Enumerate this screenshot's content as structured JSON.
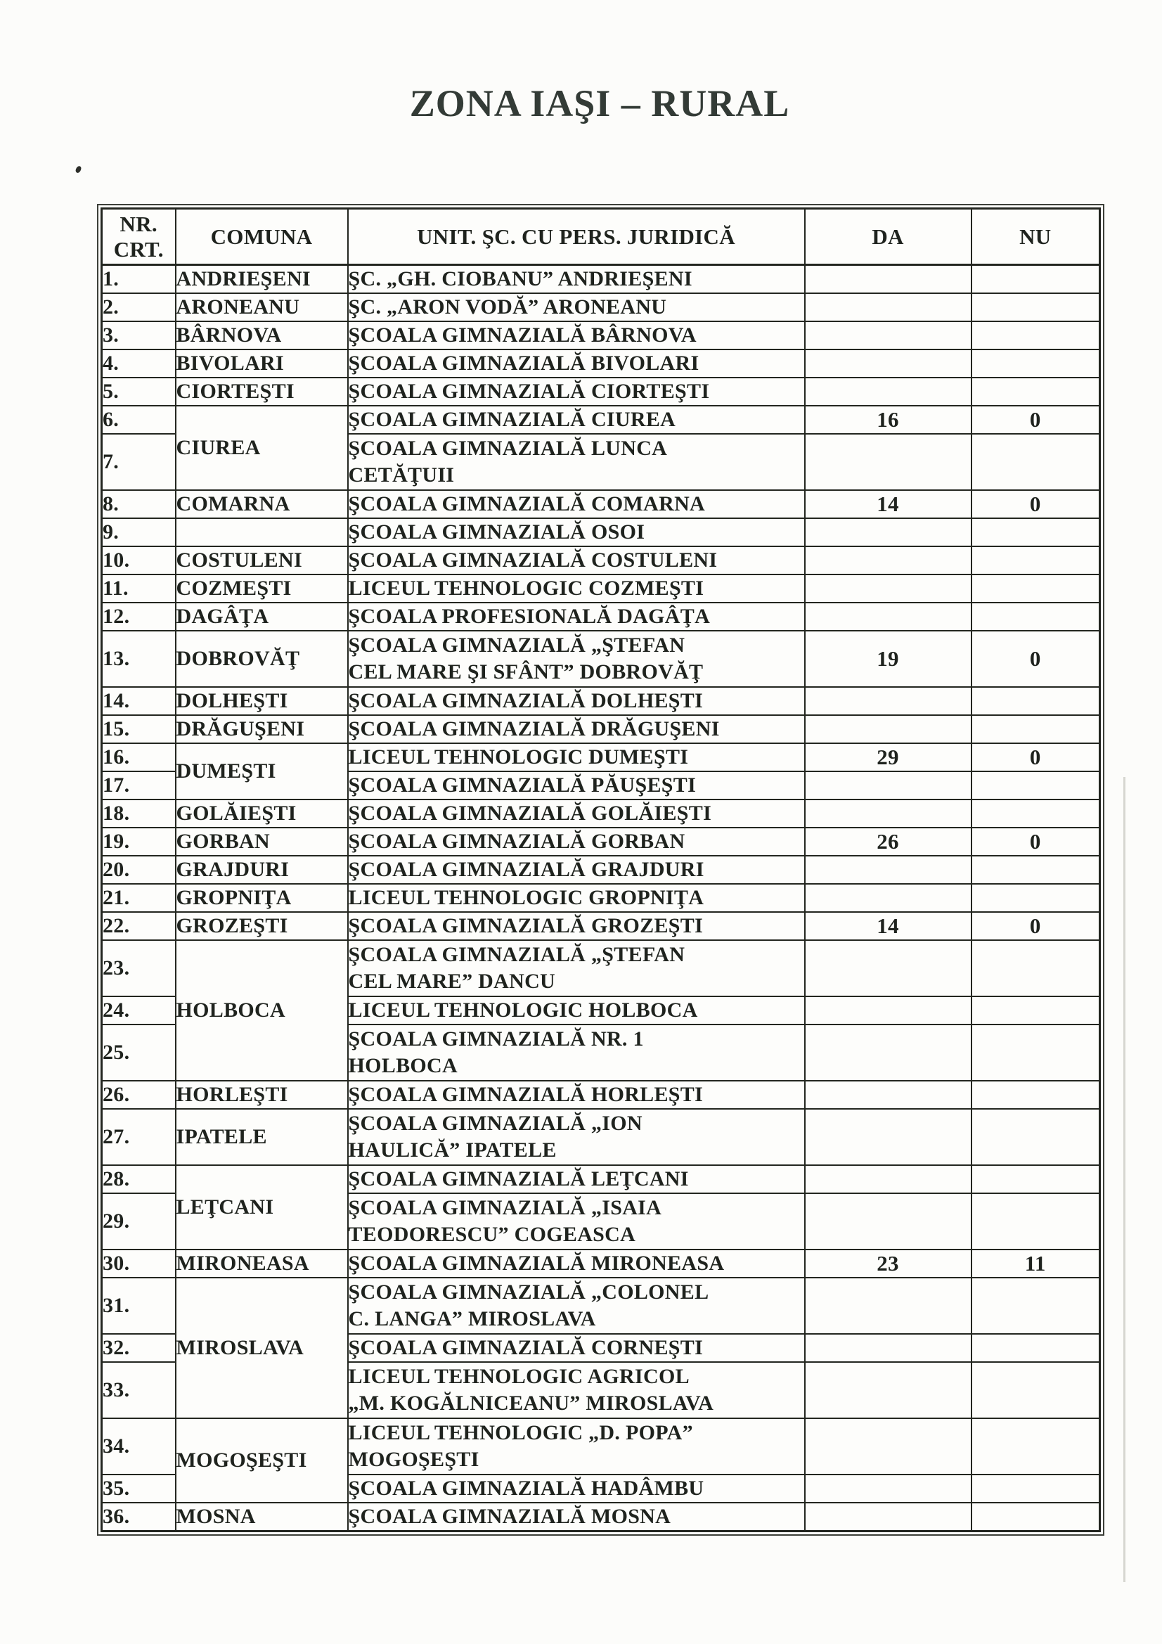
{
  "title": "ZONA IAŞI – RURAL",
  "table": {
    "headers": {
      "nr": "NR. CRT.",
      "comuna": "COMUNA",
      "unit": "UNIT. ŞC. CU PERS. JURIDICĂ",
      "da": "DA",
      "nu": "NU"
    },
    "rows": [
      {
        "nr": "1.",
        "comuna": "ANDRIEŞENI",
        "comuna_rowspan": 1,
        "unit": "ŞC. „GH. CIOBANU” ANDRIEŞENI",
        "da": "",
        "nu": "",
        "tall": false
      },
      {
        "nr": "2.",
        "comuna": "ARONEANU",
        "comuna_rowspan": 1,
        "unit": "ŞC. „ARON VODĂ” ARONEANU",
        "da": "",
        "nu": "",
        "tall": false
      },
      {
        "nr": "3.",
        "comuna": "BÂRNOVA",
        "comuna_rowspan": 1,
        "unit": "ŞCOALA GIMNAZIALĂ BÂRNOVA",
        "da": "",
        "nu": "",
        "tall": false
      },
      {
        "nr": "4.",
        "comuna": "BIVOLARI",
        "comuna_rowspan": 1,
        "unit": "ŞCOALA GIMNAZIALĂ BIVOLARI",
        "da": "",
        "nu": "",
        "tall": false
      },
      {
        "nr": "5.",
        "comuna": "CIORTEŞTI",
        "comuna_rowspan": 1,
        "unit": "ŞCOALA GIMNAZIALĂ CIORTEŞTI",
        "da": "",
        "nu": "",
        "tall": false
      },
      {
        "nr": "6.",
        "comuna": "CIUREA",
        "comuna_rowspan": 2,
        "unit": "ŞCOALA GIMNAZIALĂ CIUREA",
        "da": "16",
        "nu": "0",
        "tall": false
      },
      {
        "nr": "7.",
        "comuna": null,
        "comuna_rowspan": 0,
        "unit": "ŞCOALA GIMNAZIALĂ LUNCA\nCETĂŢUII",
        "da": "",
        "nu": "",
        "tall": true
      },
      {
        "nr": "8.",
        "comuna": "COMARNA",
        "comuna_rowspan": 1,
        "unit": "ŞCOALA GIMNAZIALĂ COMARNA",
        "da": "14",
        "nu": "0",
        "tall": false
      },
      {
        "nr": "9.",
        "comuna": "",
        "comuna_rowspan": 1,
        "unit": "ŞCOALA GIMNAZIALĂ OSOI",
        "da": "",
        "nu": "",
        "tall": false
      },
      {
        "nr": "10.",
        "comuna": "COSTULENI",
        "comuna_rowspan": 1,
        "unit": "ŞCOALA GIMNAZIALĂ COSTULENI",
        "da": "",
        "nu": "",
        "tall": false
      },
      {
        "nr": "11.",
        "comuna": "COZMEŞTI",
        "comuna_rowspan": 1,
        "unit": "LICEUL TEHNOLOGIC COZMEŞTI",
        "da": "",
        "nu": "",
        "tall": false
      },
      {
        "nr": "12.",
        "comuna": "DAGÂŢA",
        "comuna_rowspan": 1,
        "unit": "ŞCOALA PROFESIONALĂ DAGÂŢA",
        "da": "",
        "nu": "",
        "tall": false
      },
      {
        "nr": "13.",
        "comuna": "DOBROVĂŢ",
        "comuna_rowspan": 1,
        "unit": "ŞCOALA GIMNAZIALĂ „ŞTEFAN\nCEL MARE ŞI SFÂNT” DOBROVĂŢ",
        "da": "19",
        "nu": "0",
        "tall": true,
        "nu_low": true
      },
      {
        "nr": "14.",
        "comuna": "DOLHEŞTI",
        "comuna_rowspan": 1,
        "unit": "ŞCOALA GIMNAZIALĂ DOLHEŞTI",
        "da": "",
        "nu": "",
        "tall": false
      },
      {
        "nr": "15.",
        "comuna": "DRĂGUŞENI",
        "comuna_rowspan": 1,
        "unit": "ŞCOALA GIMNAZIALĂ DRĂGUŞENI",
        "da": "",
        "nu": "",
        "tall": false
      },
      {
        "nr": "16.",
        "comuna": "DUMEŞTI",
        "comuna_rowspan": 2,
        "unit": "LICEUL TEHNOLOGIC DUMEŞTI",
        "da": "29",
        "nu": "0",
        "tall": false
      },
      {
        "nr": "17.",
        "comuna": null,
        "comuna_rowspan": 0,
        "unit": "ŞCOALA GIMNAZIALĂ PĂUŞEŞTI",
        "da": "",
        "nu": "",
        "tall": false
      },
      {
        "nr": "18.",
        "comuna": "GOLĂIEŞTI",
        "comuna_rowspan": 1,
        "unit": "ŞCOALA GIMNAZIALĂ GOLĂIEŞTI",
        "da": "",
        "nu": "",
        "tall": false
      },
      {
        "nr": "19.",
        "comuna": "GORBAN",
        "comuna_rowspan": 1,
        "unit": "ŞCOALA GIMNAZIALĂ GORBAN",
        "da": "26",
        "nu": "0",
        "tall": false
      },
      {
        "nr": "20.",
        "comuna": "GRAJDURI",
        "comuna_rowspan": 1,
        "unit": "ŞCOALA GIMNAZIALĂ GRAJDURI",
        "da": "",
        "nu": "",
        "tall": false
      },
      {
        "nr": "21.",
        "comuna": "GROPNIŢA",
        "comuna_rowspan": 1,
        "unit": "LICEUL TEHNOLOGIC GROPNIŢA",
        "da": "",
        "nu": "",
        "tall": false
      },
      {
        "nr": "22.",
        "comuna": "GROZEŞTI",
        "comuna_rowspan": 1,
        "unit": "ŞCOALA GIMNAZIALĂ GROZEŞTI",
        "da": "14",
        "nu": "0",
        "tall": false
      },
      {
        "nr": "23.",
        "comuna": "HOLBOCA",
        "comuna_rowspan": 3,
        "unit": "ŞCOALA GIMNAZIALĂ „ŞTEFAN\nCEL MARE” DANCU",
        "da": "",
        "nu": "",
        "tall": true
      },
      {
        "nr": "24.",
        "comuna": null,
        "comuna_rowspan": 0,
        "unit": "LICEUL TEHNOLOGIC HOLBOCA",
        "da": "",
        "nu": "",
        "tall": false
      },
      {
        "nr": "25.",
        "comuna": null,
        "comuna_rowspan": 0,
        "unit": "ŞCOALA GIMNAZIALĂ NR. 1\nHOLBOCA",
        "da": "",
        "nu": "",
        "tall": true
      },
      {
        "nr": "26.",
        "comuna": "HORLEŞTI",
        "comuna_rowspan": 1,
        "unit": "ŞCOALA GIMNAZIALĂ HORLEŞTI",
        "da": "",
        "nu": "",
        "tall": false
      },
      {
        "nr": "27.",
        "comuna": "IPATELE",
        "comuna_rowspan": 1,
        "unit": "ŞCOALA GIMNAZIALĂ „ION\nHAULICĂ” IPATELE",
        "da": "",
        "nu": "",
        "tall": true
      },
      {
        "nr": "28.",
        "comuna": "LEŢCANI",
        "comuna_rowspan": 2,
        "unit": "ŞCOALA GIMNAZIALĂ LEŢCANI",
        "da": "",
        "nu": "",
        "tall": false
      },
      {
        "nr": "29.",
        "comuna": null,
        "comuna_rowspan": 0,
        "unit": "ŞCOALA GIMNAZIALĂ „ISAIA\nTEODORESCU” COGEASCA",
        "da": "",
        "nu": "",
        "tall": true
      },
      {
        "nr": "30.",
        "comuna": "MIRONEASA",
        "comuna_rowspan": 1,
        "unit": "ŞCOALA GIMNAZIALĂ MIRONEASA",
        "da": "23",
        "nu": "11",
        "tall": false
      },
      {
        "nr": "31.",
        "comuna": "MIROSLAVA",
        "comuna_rowspan": 3,
        "unit": "ŞCOALA GIMNAZIALĂ „COLONEL\nC. LANGA” MIROSLAVA",
        "da": "",
        "nu": "",
        "tall": true
      },
      {
        "nr": "32.",
        "comuna": null,
        "comuna_rowspan": 0,
        "unit": "ŞCOALA GIMNAZIALĂ CORNEŞTI",
        "da": "",
        "nu": "",
        "tall": false
      },
      {
        "nr": "33.",
        "comuna": null,
        "comuna_rowspan": 0,
        "unit": "LICEUL TEHNOLOGIC AGRICOL\n„M. KOGĂLNICEANU” MIROSLAVA",
        "da": "",
        "nu": "",
        "tall": true
      },
      {
        "nr": "34.",
        "comuna": "MOGOŞEŞTI",
        "comuna_rowspan": 2,
        "unit": "LICEUL TEHNOLOGIC „D. POPA”\nMOGOŞEŞTI",
        "da": "",
        "nu": "",
        "tall": true
      },
      {
        "nr": "35.",
        "comuna": null,
        "comuna_rowspan": 0,
        "unit": "ŞCOALA GIMNAZIALĂ HADÂMBU",
        "da": "",
        "nu": "",
        "tall": false
      },
      {
        "nr": "36.",
        "comuna": "MOSNA",
        "comuna_rowspan": 1,
        "unit": "ŞCOALA GIMNAZIALĂ MOSNA",
        "da": "",
        "nu": "",
        "tall": false
      }
    ]
  }
}
